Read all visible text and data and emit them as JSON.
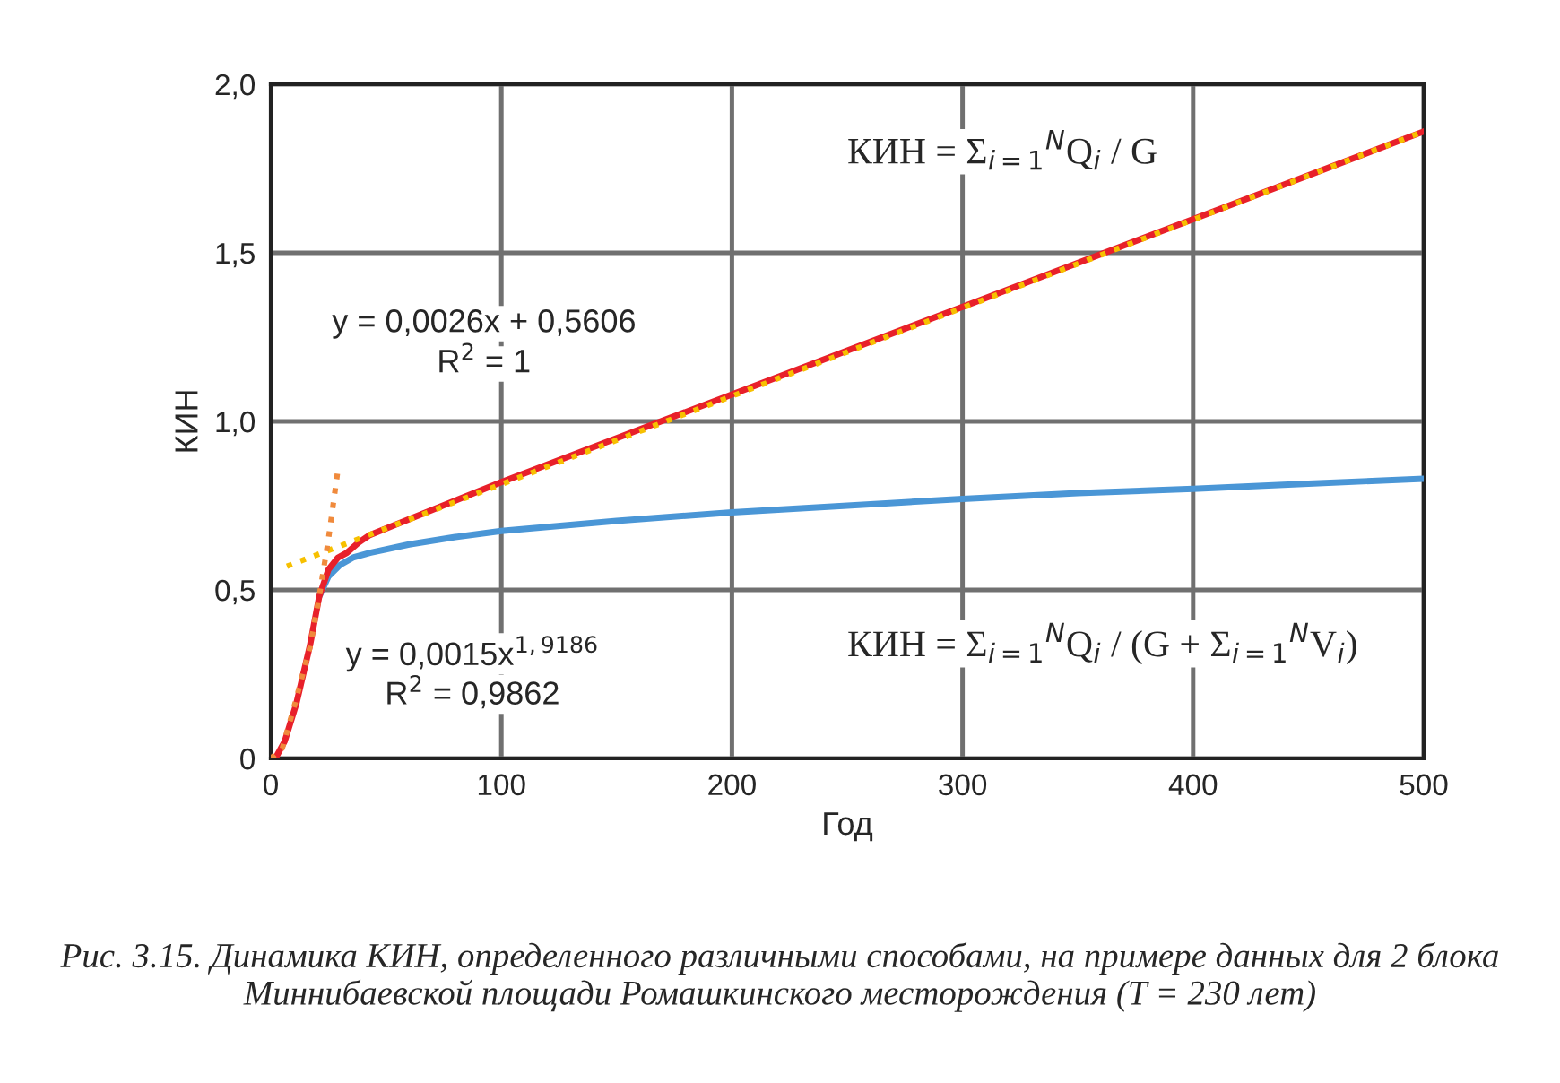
{
  "chart_data": {
    "type": "line",
    "xlabel": "Год",
    "ylabel": "КИН",
    "xlim": [
      0,
      500
    ],
    "xticks": [
      0,
      100,
      200,
      300,
      400,
      500
    ],
    "ylim": [
      0,
      2.0
    ],
    "yticks": [
      0,
      {
        "value": 0.5,
        "label": "0,5"
      },
      {
        "value": 1.0,
        "label": "1,0"
      },
      {
        "value": 1.5,
        "label": "1,5"
      },
      {
        "value": 2.0,
        "label": "2,0"
      }
    ],
    "grid": true,
    "legend": false,
    "marker": "none",
    "series": [
      {
        "color": "#4a96d6",
        "line_style": "solid",
        "x": [
          21,
          25,
          30,
          36,
          43,
          60,
          80,
          100,
          150,
          200,
          250,
          300,
          350,
          400,
          450,
          500
        ],
        "values": [
          0.48,
          0.54,
          0.574,
          0.597,
          0.61,
          0.635,
          0.657,
          0.675,
          0.705,
          0.73,
          0.75,
          0.77,
          0.787,
          0.8,
          0.815,
          0.83
        ]
      },
      {
        "color": "#e8202a",
        "line_style": "solid",
        "x": [
          0,
          2,
          6,
          11,
          17,
          21,
          25,
          29,
          33,
          38,
          43,
          100,
          200,
          300,
          400,
          500
        ],
        "values": [
          0,
          0.0,
          0.05,
          0.16,
          0.335,
          0.48,
          0.56,
          0.595,
          0.61,
          0.64,
          0.663,
          0.82,
          1.08,
          1.34,
          1.6,
          1.86
        ]
      },
      {
        "color": "#f7c000",
        "line_style": "dotted",
        "x": [
          7,
          500
        ],
        "values": [
          0.57,
          1.86
        ]
      },
      {
        "color": "#f08a3c",
        "line_style": "dotted",
        "x": [
          0,
          5,
          10,
          17,
          21,
          25,
          29
        ],
        "values": [
          0,
          0.03,
          0.15,
          0.33,
          0.48,
          0.65,
          0.85
        ]
      }
    ],
    "annotations": [
      "y = 0,0026x + 0,5606",
      "R$^{2}$ = 1",
      "y = 0,0015x$^{1,9186}$",
      "R$^{2}$ = 0,9862",
      "КИН = Σ$_{i=1}$$^{N}$Q$_{i}$ / G",
      "КИН = Σ$_{i=1}$$^{N}$Q$_{i}$ / (G + Σ$_{i=1}$$^{N}$V$_{i}$)",
      "Рис. 3.15. Динамика КИН, определенного различными способами, на примере данных для 2 блока Миннибаевской площади Ромашкинского месторождения (T = 230 лет)"
    ]
  }
}
